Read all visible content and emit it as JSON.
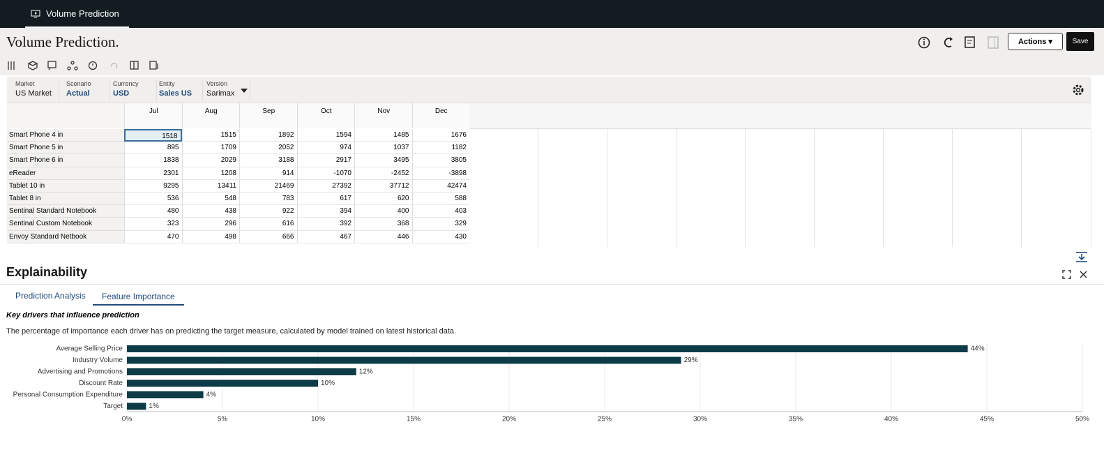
{
  "tab": "Volume Prediction",
  "header": {
    "title": "Volume Prediction.",
    "actions": "Actions",
    "save": "Save"
  },
  "pov": [
    {
      "label": "Market",
      "value": "US Market"
    },
    {
      "label": "Scenario",
      "value": "Actual"
    },
    {
      "label": "Currency",
      "value": "USD"
    },
    {
      "label": "Entity",
      "value": "Sales US"
    },
    {
      "label": "Version",
      "value": "Sarimax"
    }
  ],
  "grid": {
    "columns": [
      "Jul",
      "Aug",
      "Sep",
      "Oct",
      "Nov",
      "Dec"
    ],
    "rows": [
      {
        "name": "Smart Phone 4 in",
        "values": [
          1518,
          1515,
          1892,
          1594,
          1485,
          1676
        ]
      },
      {
        "name": "Smart Phone 5 in",
        "values": [
          895,
          1709,
          2052,
          974,
          1037,
          1182
        ]
      },
      {
        "name": "Smart Phone 6 in",
        "values": [
          1838,
          2029,
          3188,
          2917,
          3495,
          3805
        ]
      },
      {
        "name": "eReader",
        "values": [
          2301,
          1208,
          914,
          -1070,
          -2452,
          -3898
        ]
      },
      {
        "name": "Tablet 10 in",
        "values": [
          9295,
          13411,
          21469,
          27392,
          37712,
          42474
        ]
      },
      {
        "name": "Tablet 8 in",
        "values": [
          536,
          548,
          783,
          617,
          620,
          588
        ]
      },
      {
        "name": "Sentinal Standard Notebook",
        "values": [
          480,
          438,
          922,
          394,
          400,
          403
        ]
      },
      {
        "name": "Sentinal Custom Notebook",
        "values": [
          323,
          296,
          616,
          392,
          368,
          329
        ]
      },
      {
        "name": "Envoy Standard Netbook",
        "values": [
          470,
          498,
          666,
          467,
          446,
          430
        ]
      }
    ]
  },
  "explainability": {
    "title": "Explainability",
    "tabs": [
      "Prediction Analysis",
      "Feature Importance"
    ]
  },
  "chart_data": {
    "type": "barh",
    "title": "Key drivers that influence prediction",
    "subtitle": "The percentage of importance each driver has on predicting the target measure, calculated by model trained on latest historical data.",
    "categories": [
      "Average Selling Price",
      "Industry Volume",
      "Advertising and Promotions",
      "Discount Rate",
      "Personal Consumption Expenditure",
      "Target"
    ],
    "values": [
      44,
      29,
      12,
      10,
      4,
      1
    ],
    "value_labels": [
      "44%",
      "29%",
      "12%",
      "10%",
      "4%",
      "1%"
    ],
    "color": "#0d3b48",
    "xlim": [
      0,
      50
    ],
    "xticks": [
      {
        "value": 0,
        "label": "0%"
      },
      {
        "value": 5,
        "label": "5%"
      },
      {
        "value": 10,
        "label": "10%"
      },
      {
        "value": 15,
        "label": "15%"
      },
      {
        "value": 20,
        "label": "20%"
      },
      {
        "value": 25,
        "label": "25%"
      },
      {
        "value": 30,
        "label": "30%"
      },
      {
        "value": 35,
        "label": "35%"
      },
      {
        "value": 40,
        "label": "40%"
      },
      {
        "value": 45,
        "label": "45%"
      },
      {
        "value": 50,
        "label": "50%"
      }
    ],
    "grid": true
  }
}
